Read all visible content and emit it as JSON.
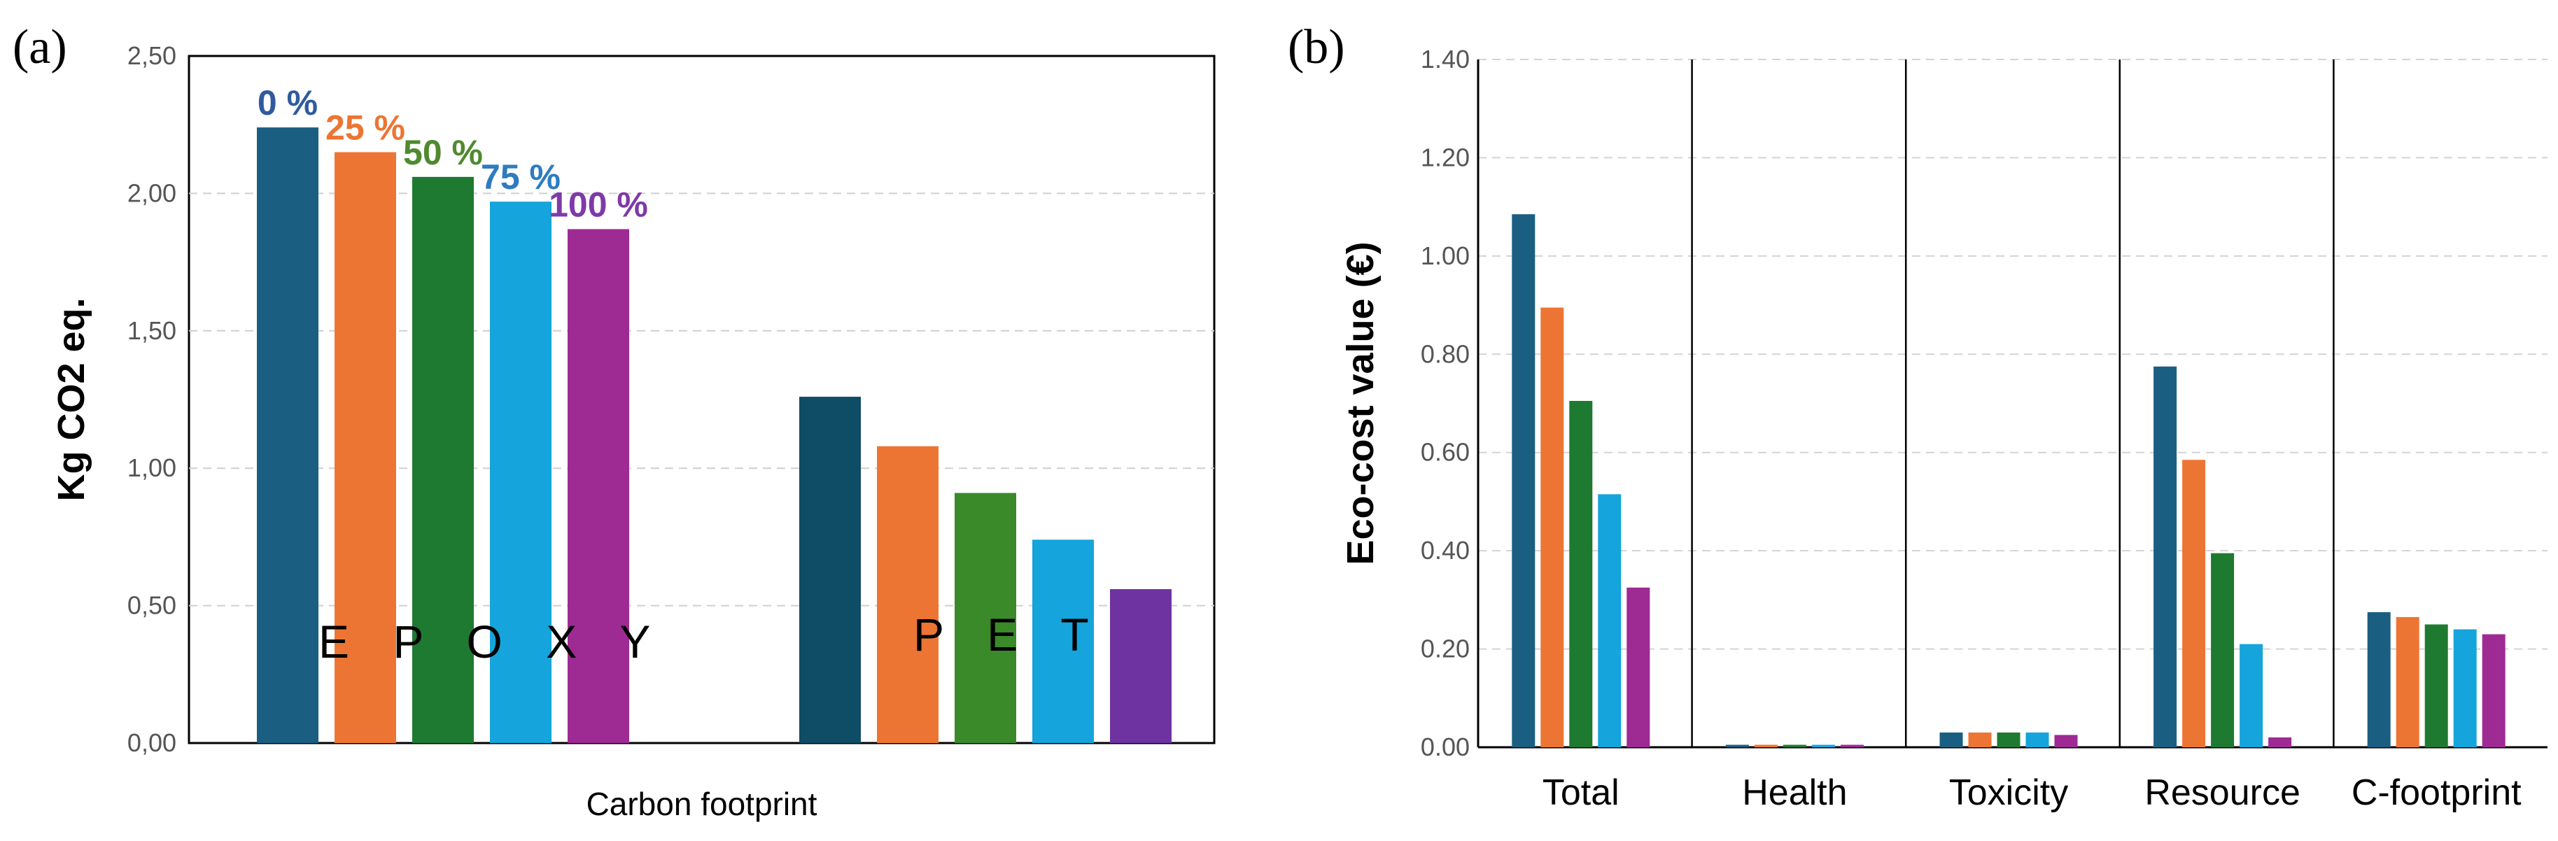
{
  "panels": {
    "a_label": "(a)",
    "b_label": "(b)"
  },
  "chart_data": [
    {
      "type": "bar",
      "title": "",
      "xlabel": "Carbon footprint",
      "ylabel": "Kg CO2 eq.",
      "ylim": [
        0,
        2.5
      ],
      "yticks": [
        "0,00",
        "0,50",
        "1,00",
        "1,50",
        "2,00",
        "2,50"
      ],
      "categories": [
        "EPOXY",
        "PET"
      ],
      "category_labels": [
        "E P O X Y",
        "P E T"
      ],
      "series": [
        {
          "name": "0 %",
          "color": "#1a5f82",
          "values": [
            2.24,
            1.26
          ]
        },
        {
          "name": "25 %",
          "color": "#ed7534",
          "values": [
            2.15,
            1.08
          ]
        },
        {
          "name": "50 %",
          "color": "#1e7a30",
          "values": [
            2.06,
            0.91
          ]
        },
        {
          "name": "75 %",
          "color": "#15a4db",
          "values": [
            1.97,
            0.74
          ]
        },
        {
          "name": "100 %",
          "color": "#9e2a94",
          "values": [
            1.87,
            0.56
          ]
        }
      ],
      "series_label_colors": [
        "#2f5b9e",
        "#ed7534",
        "#4f8a2e",
        "#2e7bc0",
        "#7e3aa8"
      ],
      "pet_colors": [
        "#0f4c66",
        "#ed7534",
        "#3a8a2a",
        "#15a4db",
        "#6e33a0"
      ]
    },
    {
      "type": "bar",
      "title": "",
      "xlabel": "",
      "ylabel": "Eco-cost value (€)",
      "ylim": [
        0,
        1.4
      ],
      "yticks": [
        "0.00",
        "0.20",
        "0.40",
        "0.60",
        "0.80",
        "1.00",
        "1.20",
        "1.40"
      ],
      "categories": [
        "Total",
        "Health",
        "Toxicity",
        "Resource",
        "C-footprint"
      ],
      "series": [
        {
          "name": "0 %",
          "color": "#1a5f82",
          "values": [
            1.085,
            0.005,
            0.03,
            0.775,
            0.275
          ]
        },
        {
          "name": "25 %",
          "color": "#ed7534",
          "values": [
            0.895,
            0.005,
            0.03,
            0.585,
            0.265
          ]
        },
        {
          "name": "50 %",
          "color": "#1e7a30",
          "values": [
            0.705,
            0.005,
            0.03,
            0.395,
            0.25
          ]
        },
        {
          "name": "75 %",
          "color": "#15a4db",
          "values": [
            0.515,
            0.005,
            0.03,
            0.21,
            0.24
          ]
        },
        {
          "name": "100 %",
          "color": "#9e2a94",
          "values": [
            0.325,
            0.005,
            0.025,
            0.02,
            0.23
          ]
        }
      ]
    }
  ]
}
